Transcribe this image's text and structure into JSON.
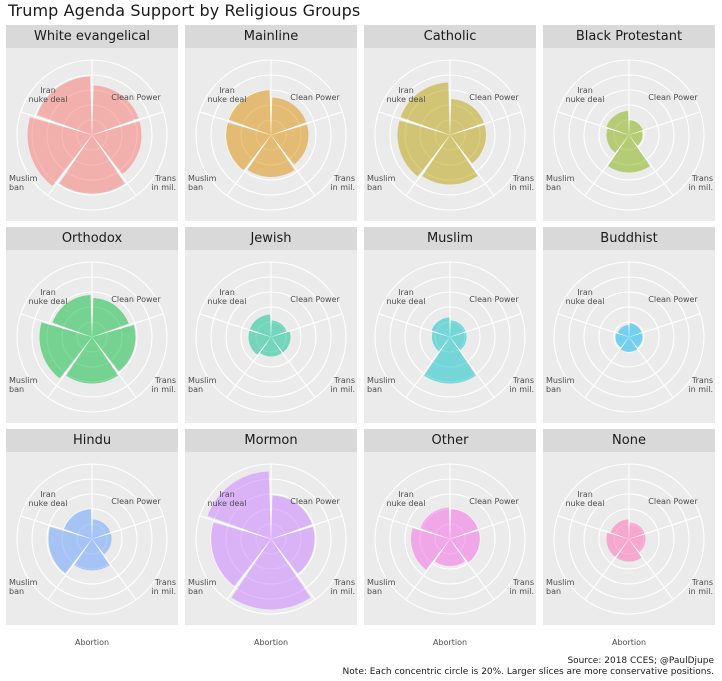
{
  "title": "Trump Agenda Support by Religious Groups",
  "footer": {
    "source": "Source: 2018 CCES; @PaulDjupe",
    "note": "Note: Each concentric circle is 20%. Larger slices are more conservative positions."
  },
  "axis_labels": {
    "clean_power": "Clean Power",
    "trans_line1": "Trans",
    "trans_line2": "in mil.",
    "abortion": "Abortion",
    "muslim_line1": "Muslim",
    "muslim_line2": "ban",
    "iran_line1": "Iran",
    "iran_line2": "nuke deal"
  },
  "chart_data": {
    "type": "polar-bar",
    "categories": [
      "Clean Power",
      "Trans in mil.",
      "Abortion",
      "Muslim ban",
      "Iran nuke deal"
    ],
    "radial_unit": "percent",
    "ring_step": 20,
    "rmax": 100,
    "grid": true,
    "panels": [
      {
        "group": "White evangelical",
        "color": "#F8766D",
        "values": [
          66,
          66,
          78,
          86,
          78
        ]
      },
      {
        "group": "Mainline",
        "color": "#DE8C00",
        "values": [
          50,
          50,
          56,
          60,
          60
        ]
      },
      {
        "group": "Catholic",
        "color": "#B79F00",
        "values": [
          48,
          48,
          66,
          70,
          70
        ]
      },
      {
        "group": "Black Protestant",
        "color": "#7CAE00",
        "values": [
          20,
          18,
          50,
          30,
          32
        ]
      },
      {
        "group": "Orthodox",
        "color": "#00BA38",
        "values": [
          52,
          58,
          62,
          70,
          56
        ]
      },
      {
        "group": "Jewish",
        "color": "#00C08B",
        "values": [
          22,
          26,
          26,
          30,
          30
        ]
      },
      {
        "group": "Muslim",
        "color": "#00BFC4",
        "values": [
          22,
          22,
          62,
          24,
          26
        ]
      },
      {
        "group": "Buddhist",
        "color": "#00B4F0",
        "values": [
          18,
          18,
          20,
          18,
          16
        ]
      },
      {
        "group": "Hindu",
        "color": "#619CFF",
        "values": [
          26,
          26,
          42,
          58,
          40
        ]
      },
      {
        "group": "Mormon",
        "color": "#C77CFF",
        "values": [
          58,
          58,
          94,
          80,
          90
        ]
      },
      {
        "group": "Other",
        "color": "#F564E3",
        "values": [
          40,
          40,
          36,
          52,
          42
        ]
      },
      {
        "group": "None",
        "color": "#FF64B0",
        "values": [
          22,
          22,
          30,
          30,
          26
        ]
      }
    ]
  }
}
